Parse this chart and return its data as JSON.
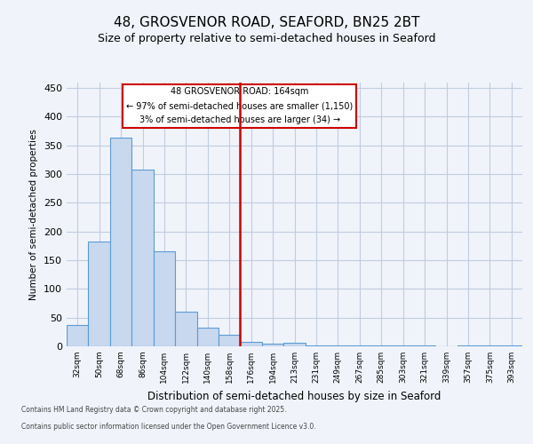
{
  "title1": "48, GROSVENOR ROAD, SEAFORD, BN25 2BT",
  "title2": "Size of property relative to semi-detached houses in Seaford",
  "xlabel": "Distribution of semi-detached houses by size in Seaford",
  "ylabel": "Number of semi-detached properties",
  "categories": [
    "32sqm",
    "50sqm",
    "68sqm",
    "86sqm",
    "104sqm",
    "122sqm",
    "140sqm",
    "158sqm",
    "176sqm",
    "194sqm",
    "213sqm",
    "231sqm",
    "249sqm",
    "267sqm",
    "285sqm",
    "303sqm",
    "321sqm",
    "339sqm",
    "357sqm",
    "375sqm",
    "393sqm"
  ],
  "values": [
    37,
    182,
    363,
    307,
    166,
    60,
    33,
    20,
    8,
    5,
    6,
    2,
    2,
    2,
    1,
    1,
    1,
    0,
    2,
    1,
    2
  ],
  "bar_color": "#c8d8ef",
  "bar_edge_color": "#5b9bd5",
  "red_line_color": "#cc0000",
  "red_line_index": 7,
  "annotation_text1": "48 GROSVENOR ROAD: 164sqm",
  "annotation_text2": "← 97% of semi-detached houses are smaller (1,150)",
  "annotation_text3": "3% of semi-detached houses are larger (34) →",
  "annotation_box_color": "#ffffff",
  "annotation_border_color": "#cc0000",
  "ylim": [
    0,
    460
  ],
  "yticks": [
    0,
    50,
    100,
    150,
    200,
    250,
    300,
    350,
    400,
    450
  ],
  "footnote1": "Contains HM Land Registry data © Crown copyright and database right 2025.",
  "footnote2": "Contains public sector information licensed under the Open Government Licence v3.0.",
  "fig_bg_color": "#f0f4fa",
  "plot_bg_color": "#f0f4fa",
  "grid_color": "#c0cce0",
  "title1_fontsize": 11,
  "title2_fontsize": 9
}
